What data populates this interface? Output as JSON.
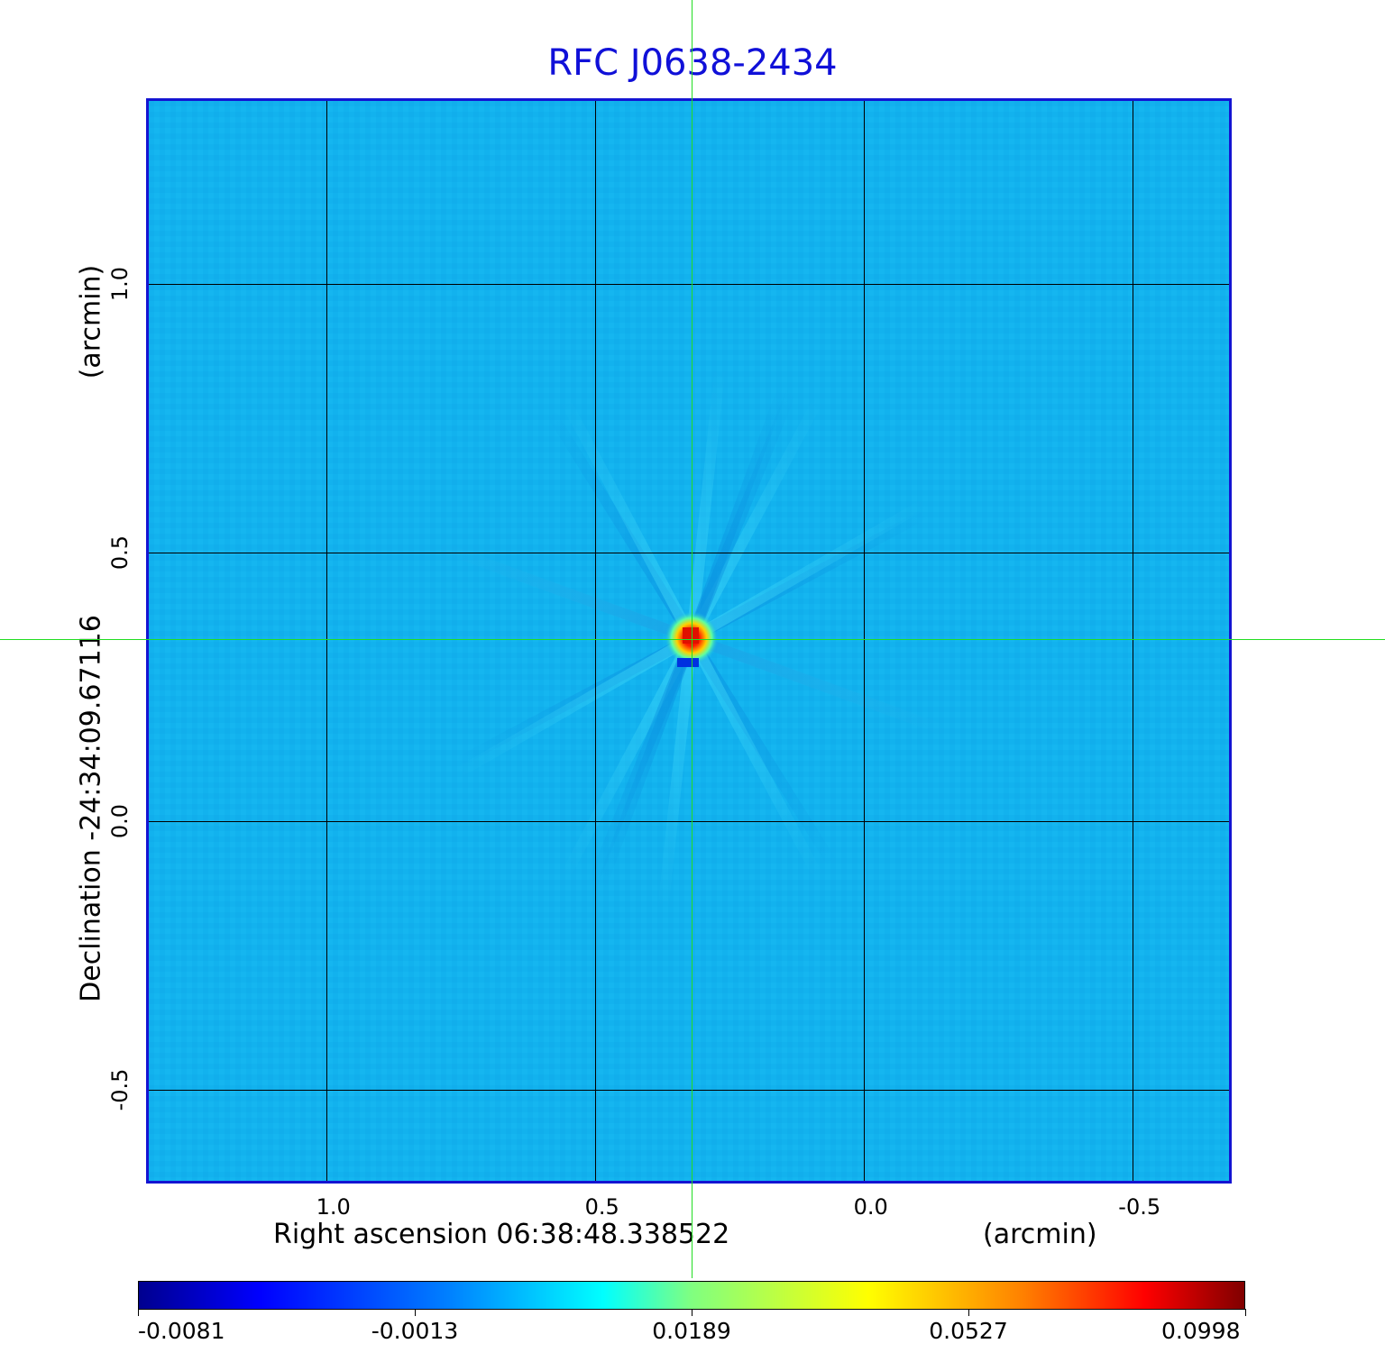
{
  "title": "RFC J0638-2434",
  "chart_data": {
    "type": "heatmap",
    "title": "RFC J0638-2434",
    "xlabel": "Right ascension  06:38:48.338522",
    "xunit": "(arcmin)",
    "ylabel": "Declination  -24:34:09.67116",
    "yunit": "(arcmin)",
    "x_ticks": [
      "1.0",
      "0.5",
      "0.0",
      "-0.5"
    ],
    "y_ticks": [
      "1.0",
      "0.5",
      "0.0",
      "-0.5"
    ],
    "x_tick_values": [
      1.0,
      0.5,
      0.0,
      -0.5
    ],
    "y_tick_values": [
      1.0,
      0.5,
      0.0,
      -0.5
    ],
    "xlim": [
      1.33,
      -0.68
    ],
    "ylim": [
      -0.67,
      1.34
    ],
    "grid": true,
    "crosshair": {
      "ra_offset": 0.32,
      "dec_offset": 0.34
    },
    "colorbar": {
      "ticks": [
        "-0.0081",
        "-0.0013",
        "0.0189",
        "0.0527",
        "0.0998"
      ],
      "tick_values": [
        -0.0081,
        -0.0013,
        0.0189,
        0.0527,
        0.0998
      ],
      "colormap": "jet"
    },
    "source": {
      "peak_value": 0.0998,
      "ra_offset": 0.32,
      "dec_offset": 0.34,
      "negative_sidelobe_min": -0.0081
    },
    "background_level": -0.0013
  },
  "colors": {
    "title": "#1010d8",
    "frame": "#1414d2",
    "background_map": "#10b0ee",
    "crosshair": "#22dd22"
  }
}
